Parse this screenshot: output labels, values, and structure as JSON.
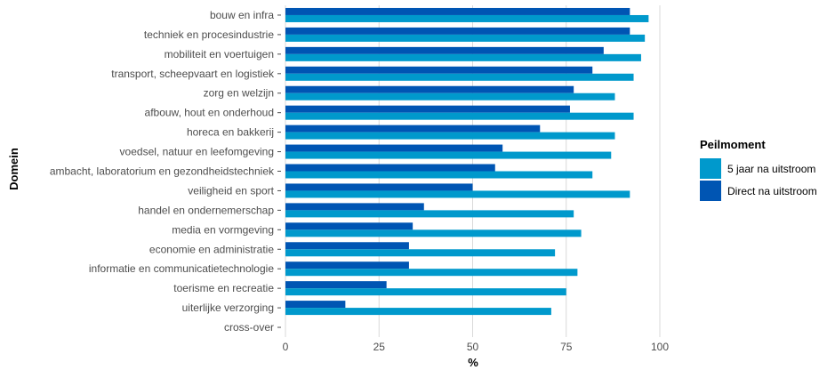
{
  "chart_data": {
    "type": "bar",
    "orientation": "horizontal",
    "xlabel": "%",
    "ylabel": "Domein",
    "xlim": [
      0,
      100
    ],
    "xticks": [
      "0",
      "25",
      "50",
      "75",
      "100"
    ],
    "grid": true,
    "legend": {
      "title": "Peilmoment",
      "position": "right"
    },
    "categories": [
      "bouw en infra",
      "techniek en procesindustrie",
      "mobiliteit en voertuigen",
      "transport, scheepvaart en logistiek",
      "zorg en welzijn",
      "afbouw, hout en onderhoud",
      "horeca en bakkerij",
      "voedsel, natuur en leefomgeving",
      "ambacht, laboratorium en gezondheidstechniek",
      "veiligheid en sport",
      "handel en ondernemerschap",
      "media en vormgeving",
      "economie en administratie",
      "informatie en communicatietechnologie",
      "toerisme en recreatie",
      "uiterlijke verzorging",
      "cross-over"
    ],
    "series": [
      {
        "name": "5 jaar na uitstroom",
        "color": "#0099cc",
        "values": [
          97,
          96,
          95,
          93,
          88,
          93,
          88,
          87,
          82,
          92,
          77,
          79,
          72,
          78,
          75,
          71,
          null
        ]
      },
      {
        "name": "Direct na uitstroom",
        "color": "#0055b3",
        "values": [
          92,
          92,
          85,
          82,
          77,
          76,
          68,
          58,
          56,
          50,
          37,
          34,
          33,
          33,
          27,
          16,
          null
        ]
      }
    ]
  }
}
